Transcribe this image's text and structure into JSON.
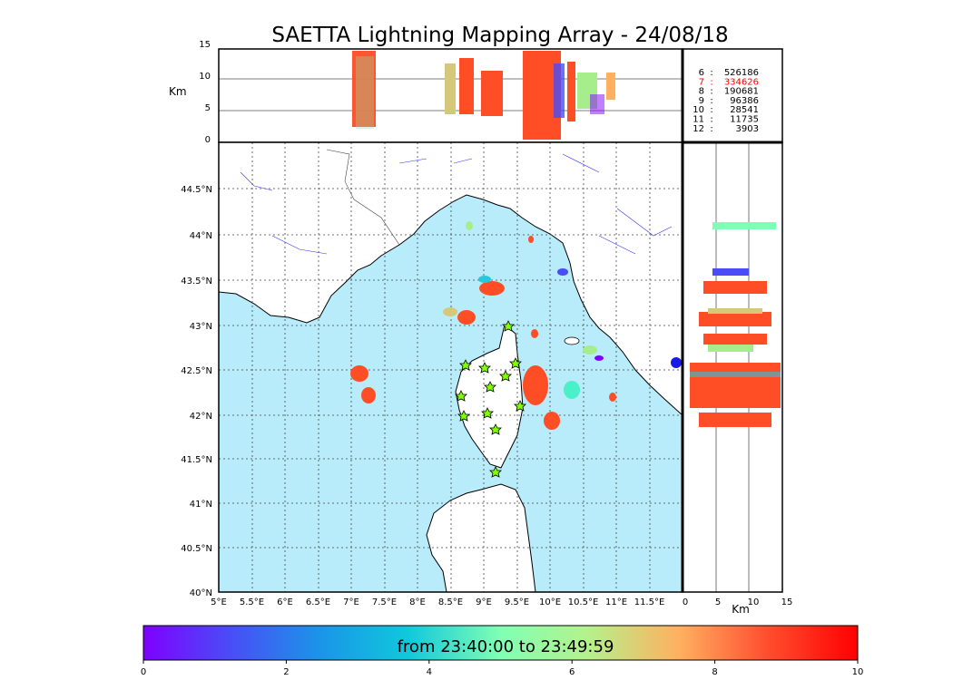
{
  "title": "SAETTA Lightning Mapping Array - 24/08/18",
  "units": {
    "km_top": "Km",
    "km_right": "Km"
  },
  "altitude_ticks": [
    "0",
    "5",
    "10",
    "15"
  ],
  "right_x_ticks": [
    "0",
    "5",
    "10",
    "15"
  ],
  "lon_ticks": [
    "5°E",
    "5.5°E",
    "6°E",
    "6.5°E",
    "7°E",
    "7.5°E",
    "8°E",
    "8.5°E",
    "9°E",
    "9.5°E",
    "10°E",
    "10.5°E",
    "11°E",
    "11.5°E"
  ],
  "lat_ticks": [
    "40°N",
    "40.5°N",
    "41°N",
    "41.5°N",
    "42°N",
    "42.5°N",
    "43°N",
    "43.5°N",
    "44°N",
    "44.5°N"
  ],
  "stations_stats": [
    {
      "label": "6",
      "sep": ":",
      "value": "526186",
      "color": "#000000"
    },
    {
      "label": "7",
      "sep": ":",
      "value": "334626",
      "color": "#ff0000"
    },
    {
      "label": "8",
      "sep": ":",
      "value": "190681",
      "color": "#000000"
    },
    {
      "label": "9",
      "sep": ":",
      "value": "96386",
      "color": "#000000"
    },
    {
      "label": "10",
      "sep": ":",
      "value": "28541",
      "color": "#000000"
    },
    {
      "label": "11",
      "sep": ":",
      "value": "11735",
      "color": "#000000"
    },
    {
      "label": "12",
      "sep": ":",
      "value": "3903",
      "color": "#000000"
    }
  ],
  "colorbar": {
    "label": "from 23:40:00 to 23:49:59",
    "ticks": [
      "0",
      "2",
      "4",
      "6",
      "8",
      "10"
    ]
  },
  "colors": {
    "sea": "#b8ecfa",
    "dominant_flash": "#ff4d26",
    "stars": "#7fff00"
  }
}
